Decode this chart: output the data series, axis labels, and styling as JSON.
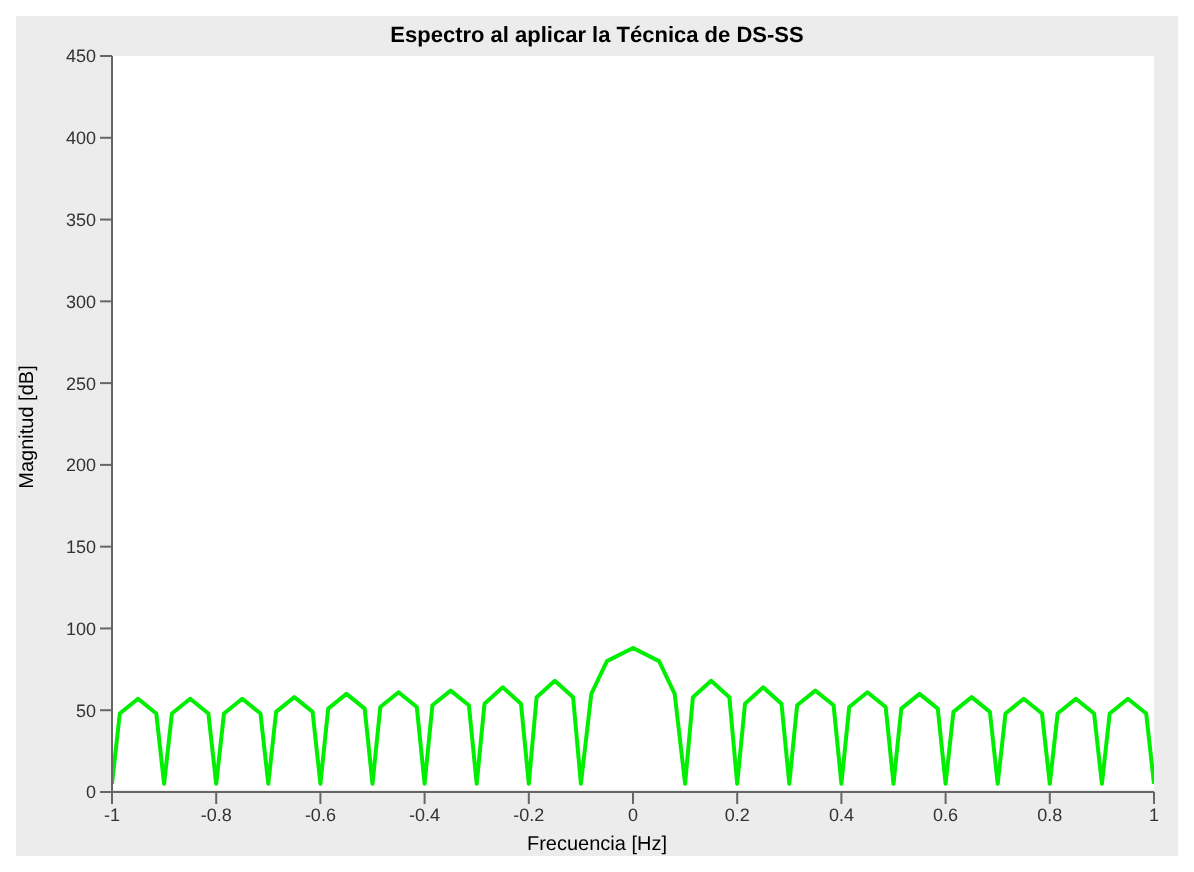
{
  "chart_data": {
    "type": "line",
    "title": "Espectro al aplicar la Técnica de DS-SS",
    "xlabel": "Frecuencia [Hz]",
    "ylabel": "Magnitud [dB]",
    "x": [
      -1,
      -0.985,
      -0.95,
      -0.915,
      -0.9,
      -0.885,
      -0.85,
      -0.815,
      -0.8,
      -0.785,
      -0.75,
      -0.715,
      -0.7,
      -0.685,
      -0.65,
      -0.615,
      -0.6,
      -0.585,
      -0.55,
      -0.515,
      -0.5,
      -0.485,
      -0.45,
      -0.415,
      -0.4,
      -0.385,
      -0.35,
      -0.315,
      -0.3,
      -0.285,
      -0.25,
      -0.215,
      -0.2,
      -0.185,
      -0.15,
      -0.115,
      -0.1,
      -0.08,
      -0.05,
      0,
      0.05,
      0.08,
      0.1,
      0.115,
      0.15,
      0.185,
      0.2,
      0.215,
      0.25,
      0.285,
      0.3,
      0.315,
      0.35,
      0.385,
      0.4,
      0.415,
      0.45,
      0.485,
      0.5,
      0.515,
      0.55,
      0.585,
      0.6,
      0.615,
      0.65,
      0.685,
      0.7,
      0.715,
      0.75,
      0.785,
      0.8,
      0.815,
      0.85,
      0.885,
      0.9,
      0.915,
      0.95,
      0.985,
      1
    ],
    "series": [
      {
        "color": "#00ee00",
        "values": [
          5,
          48,
          57,
          48,
          5,
          48,
          57,
          48,
          5,
          48,
          57,
          48,
          5,
          49,
          58,
          49,
          5,
          51,
          60,
          51,
          5,
          52,
          61,
          52,
          5,
          53,
          62,
          53,
          5,
          54,
          64,
          54,
          5,
          58,
          68,
          58,
          5,
          60,
          80,
          88,
          80,
          60,
          5,
          58,
          68,
          58,
          5,
          54,
          64,
          54,
          5,
          53,
          62,
          53,
          5,
          52,
          61,
          52,
          5,
          51,
          60,
          51,
          5,
          49,
          58,
          49,
          5,
          48,
          57,
          48,
          5,
          48,
          57,
          48,
          5,
          48,
          57,
          48,
          5
        ]
      }
    ],
    "xlim": [
      -1,
      1
    ],
    "xticks": [
      {
        "value": -1,
        "label": "-1"
      },
      {
        "value": -0.8,
        "label": "-0.8"
      },
      {
        "value": -0.6,
        "label": "-0.6"
      },
      {
        "value": -0.4,
        "label": "-0.4"
      },
      {
        "value": -0.2,
        "label": "-0.2"
      },
      0,
      0.2,
      0.4,
      0.6,
      0.8,
      1
    ],
    "ylim": [
      0,
      450
    ],
    "yticks": [
      0,
      50,
      100,
      150,
      200,
      250,
      300,
      350,
      400,
      450
    ],
    "grid": false,
    "legend": false,
    "marker": "none",
    "line_style": "solid"
  }
}
